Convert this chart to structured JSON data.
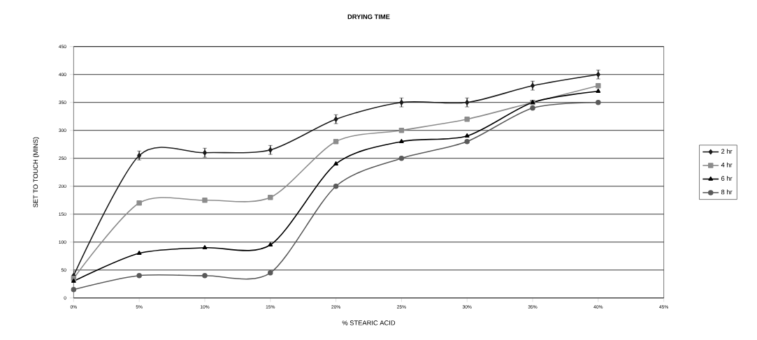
{
  "chart_data": {
    "type": "line",
    "title": "DRYING TIME",
    "xlabel": "% STEARIC ACID",
    "ylabel": "SET TO TOUCH (MINS)",
    "x": [
      0,
      5,
      10,
      15,
      20,
      25,
      30,
      35,
      40
    ],
    "series": [
      {
        "name": "2 hr",
        "color": "#1a1a1a",
        "marker": "diamond",
        "values": [
          40,
          255,
          260,
          265,
          320,
          350,
          350,
          380,
          400
        ],
        "errors": [
          8,
          8,
          8,
          8,
          8,
          8,
          8,
          8,
          8
        ]
      },
      {
        "name": "4 hr",
        "color": "#8c8c8c",
        "marker": "square",
        "values": [
          35,
          170,
          175,
          180,
          280,
          300,
          320,
          350,
          380
        ]
      },
      {
        "name": "6 hr",
        "color": "#000000",
        "marker": "triangle",
        "values": [
          30,
          80,
          90,
          95,
          240,
          280,
          290,
          350,
          370
        ]
      },
      {
        "name": "8 hr",
        "color": "#5a5a5a",
        "marker": "circle",
        "values": [
          15,
          40,
          40,
          45,
          200,
          250,
          280,
          340,
          350
        ]
      }
    ],
    "xlim": [
      0,
      45
    ],
    "ylim": [
      0,
      450
    ],
    "xticks": [
      {
        "value": 0,
        "label": "0%"
      },
      {
        "value": 5,
        "label": "5%"
      },
      {
        "value": 10,
        "label": "10%"
      },
      {
        "value": 15,
        "label": "15%"
      },
      {
        "value": 20,
        "label": "20%"
      },
      {
        "value": 25,
        "label": "25%"
      },
      {
        "value": 30,
        "label": "30%"
      },
      {
        "value": 35,
        "label": "35%"
      },
      {
        "value": 40,
        "label": "40%"
      },
      {
        "value": 45,
        "label": "45%"
      }
    ],
    "yticks": [
      0,
      50,
      100,
      150,
      200,
      250,
      300,
      350,
      400,
      450
    ],
    "grid": "y",
    "legend": "right",
    "line_style": "solid"
  }
}
